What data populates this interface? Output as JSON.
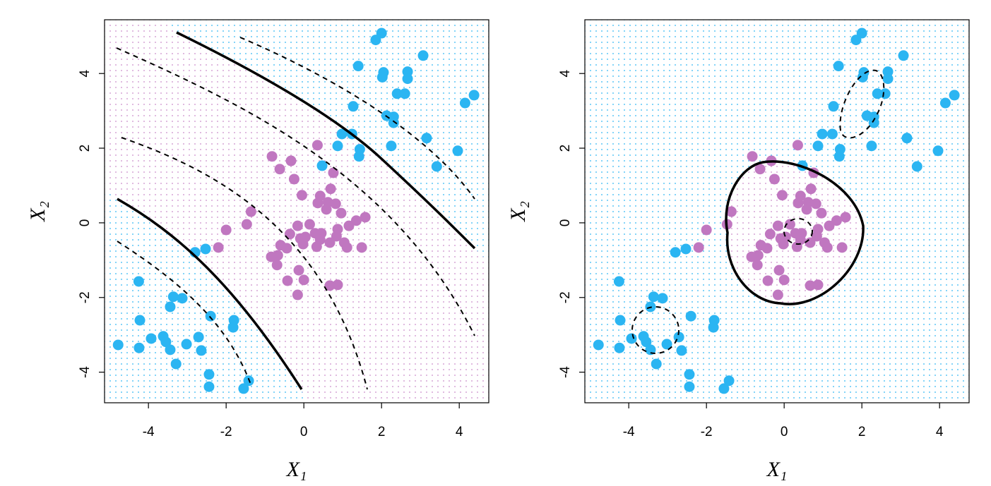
{
  "chart_data": [
    {
      "type": "scatter",
      "xlim": [
        -5.13,
        4.76
      ],
      "ylim": [
        -4.82,
        5.44
      ],
      "xticks": [
        -4,
        -2,
        0,
        2,
        4
      ],
      "yticks": [
        -4,
        -2,
        0,
        2,
        4
      ],
      "x_label": "X₁",
      "y_label": "X₂",
      "series": [
        {
          "color": "#2bb5f2",
          "x": [
            2.0,
            1.85,
            3.07,
            1.4,
            2.67,
            2.05,
            2.02,
            2.67,
            2.4,
            2.6,
            4.38,
            4.15,
            1.27,
            2.13,
            2.31,
            2.31,
            3.16,
            0.98,
            1.24,
            0.87,
            2.25,
            1.44,
            3.96,
            1.42,
            0.47,
            3.42,
            -2.8,
            -2.53,
            -4.25,
            -3.36,
            -3.13,
            -3.44,
            -2.4,
            -1.8,
            -1.82,
            -4.22,
            -3.93,
            -3.62,
            -2.71,
            -3.55,
            -4.78,
            -4.24,
            -3.02,
            -3.44,
            -2.64,
            -3.29,
            -2.44,
            -2.44,
            -1.42,
            -1.55
          ],
          "y": [
            5.08,
            4.9,
            4.48,
            4.2,
            4.05,
            4.03,
            3.9,
            3.86,
            3.46,
            3.46,
            3.42,
            3.21,
            3.12,
            2.87,
            2.84,
            2.68,
            2.27,
            2.38,
            2.38,
            2.06,
            2.06,
            1.97,
            1.93,
            1.78,
            1.53,
            1.51,
            -0.79,
            -0.7,
            -1.57,
            -1.98,
            -2.02,
            -2.25,
            -2.5,
            -2.61,
            -2.8,
            -2.61,
            -3.1,
            -3.04,
            -3.06,
            -3.19,
            -3.27,
            -3.35,
            -3.25,
            -3.4,
            -3.42,
            -3.78,
            -4.06,
            -4.39,
            -4.23,
            -4.44
          ]
        },
        {
          "color": "#c077c0",
          "x": [
            0.35,
            -0.82,
            -0.33,
            -0.62,
            0.76,
            -0.25,
            0.69,
            -0.05,
            0.42,
            0.62,
            0.36,
            0.82,
            0.58,
            -1.36,
            0.96,
            1.58,
            1.35,
            -1.47,
            -2.0,
            0.15,
            -0.16,
            1.16,
            0.87,
            -0.36,
            0.29,
            0.45,
            0.04,
            0.84,
            -0.09,
            0.42,
            0.67,
            1.04,
            -0.02,
            -0.6,
            -0.44,
            0.33,
            -2.2,
            1.11,
            1.49,
            -0.67,
            -0.84,
            -0.69,
            -0.13,
            -0.42,
            0.0,
            0.67,
            0.87,
            -0.16
          ],
          "y": [
            2.08,
            1.78,
            1.66,
            1.44,
            1.34,
            1.17,
            0.91,
            0.74,
            0.72,
            0.55,
            0.53,
            0.51,
            0.36,
            0.3,
            0.26,
            0.15,
            0.06,
            -0.04,
            -0.19,
            -0.04,
            -0.08,
            -0.08,
            -0.17,
            -0.3,
            -0.28,
            -0.28,
            -0.38,
            -0.36,
            -0.42,
            -0.45,
            -0.53,
            -0.53,
            -0.57,
            -0.6,
            -0.68,
            -0.64,
            -0.66,
            -0.66,
            -0.66,
            -0.87,
            -0.91,
            -1.13,
            -1.27,
            -1.55,
            -1.53,
            -1.68,
            -1.66,
            -1.93
          ]
        }
      ]
    },
    {
      "type": "scatter",
      "xlim": [
        -5.13,
        4.76
      ],
      "ylim": [
        -4.82,
        5.44
      ],
      "xticks": [
        -4,
        -2,
        0,
        2,
        4
      ],
      "yticks": [
        -4,
        -2,
        0,
        2,
        4
      ],
      "x_label": "X₁",
      "y_label": "X₂",
      "series": [
        {
          "color": "#2bb5f2",
          "x": [
            2.0,
            1.85,
            3.07,
            1.4,
            2.67,
            2.05,
            2.02,
            2.67,
            2.4,
            2.6,
            4.38,
            4.15,
            1.27,
            2.13,
            2.31,
            2.31,
            3.16,
            0.98,
            1.24,
            0.87,
            2.25,
            1.44,
            3.96,
            1.42,
            0.47,
            3.42,
            -2.8,
            -2.53,
            -4.25,
            -3.36,
            -3.13,
            -3.44,
            -2.4,
            -1.8,
            -1.82,
            -4.22,
            -3.93,
            -3.62,
            -2.71,
            -3.55,
            -4.78,
            -4.24,
            -3.02,
            -3.44,
            -2.64,
            -3.29,
            -2.44,
            -2.44,
            -1.42,
            -1.55
          ],
          "y": [
            5.08,
            4.9,
            4.48,
            4.2,
            4.05,
            4.03,
            3.9,
            3.86,
            3.46,
            3.46,
            3.42,
            3.21,
            3.12,
            2.87,
            2.84,
            2.68,
            2.27,
            2.38,
            2.38,
            2.06,
            2.06,
            1.97,
            1.93,
            1.78,
            1.53,
            1.51,
            -0.79,
            -0.7,
            -1.57,
            -1.98,
            -2.02,
            -2.25,
            -2.5,
            -2.61,
            -2.8,
            -2.61,
            -3.1,
            -3.04,
            -3.06,
            -3.19,
            -3.27,
            -3.35,
            -3.25,
            -3.4,
            -3.42,
            -3.78,
            -4.06,
            -4.39,
            -4.23,
            -4.44
          ]
        },
        {
          "color": "#c077c0",
          "x": [
            0.35,
            -0.82,
            -0.33,
            -0.62,
            0.76,
            -0.25,
            0.69,
            -0.05,
            0.42,
            0.62,
            0.36,
            0.82,
            0.58,
            -1.36,
            0.96,
            1.58,
            1.35,
            -1.47,
            -2.0,
            0.15,
            -0.16,
            1.16,
            0.87,
            -0.36,
            0.29,
            0.45,
            0.04,
            0.84,
            -0.09,
            0.42,
            0.67,
            1.04,
            -0.02,
            -0.6,
            -0.44,
            0.33,
            -2.2,
            1.11,
            1.49,
            -0.67,
            -0.84,
            -0.69,
            -0.13,
            -0.42,
            0.0,
            0.67,
            0.87,
            -0.16
          ],
          "y": [
            2.08,
            1.78,
            1.66,
            1.44,
            1.34,
            1.17,
            0.91,
            0.74,
            0.72,
            0.55,
            0.53,
            0.51,
            0.36,
            0.3,
            0.26,
            0.15,
            0.06,
            -0.04,
            -0.19,
            -0.04,
            -0.08,
            -0.08,
            -0.17,
            -0.3,
            -0.28,
            -0.28,
            -0.38,
            -0.36,
            -0.42,
            -0.45,
            -0.53,
            -0.53,
            -0.57,
            -0.6,
            -0.68,
            -0.64,
            -0.66,
            -0.66,
            -0.66,
            -0.87,
            -0.91,
            -1.13,
            -1.27,
            -1.55,
            -1.53,
            -1.68,
            -1.66,
            -1.93
          ]
        }
      ]
    }
  ]
}
